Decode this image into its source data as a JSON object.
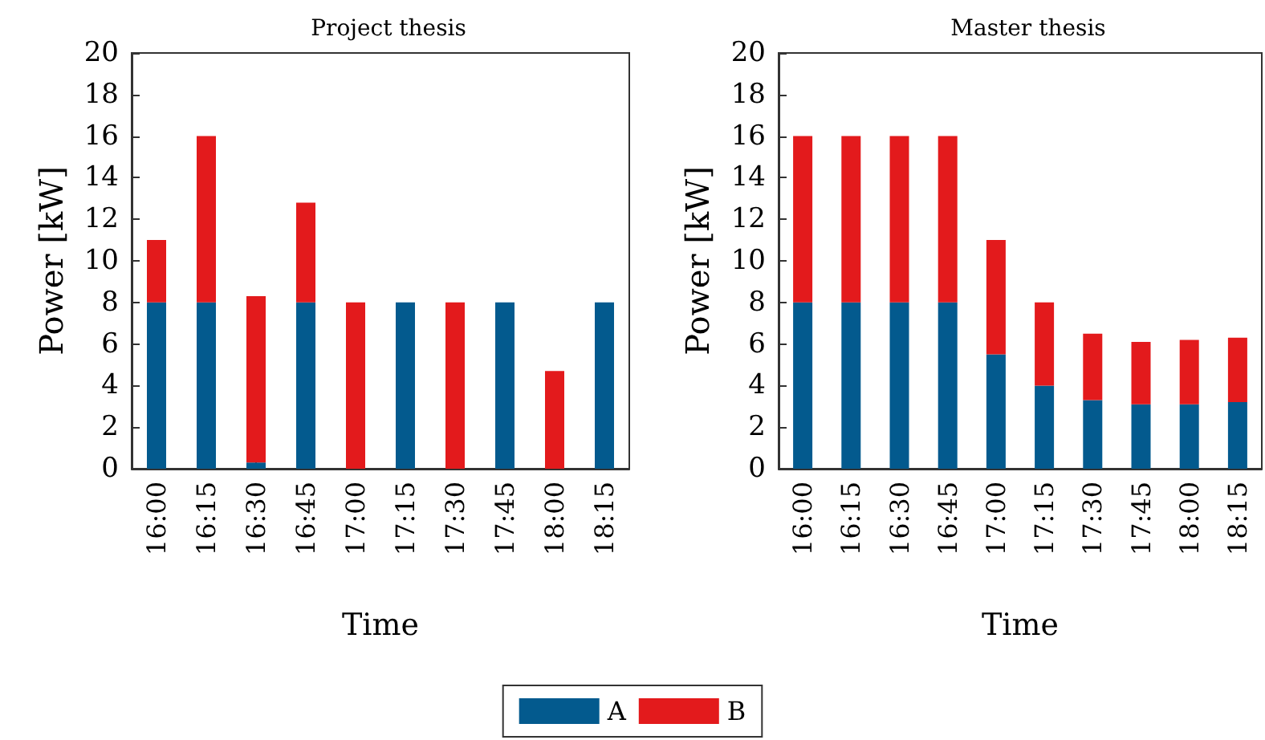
{
  "chart_data": [
    {
      "type": "bar",
      "title": "Project thesis",
      "xlabel": "Time",
      "ylabel": "Power [kW]",
      "stacked": true,
      "legend": "bottom",
      "grid": false,
      "categories": [
        "16:00",
        "16:15",
        "16:30",
        "16:45",
        "17:00",
        "17:15",
        "17:30",
        "17:45",
        "18:00",
        "18:15"
      ],
      "ylim": [
        0,
        20
      ],
      "yticks": [
        0,
        2,
        4,
        6,
        8,
        10,
        12,
        14,
        16,
        18,
        20
      ],
      "series": [
        {
          "name": "A",
          "color": "#035a8e",
          "values": [
            8,
            8,
            0.3,
            8,
            0,
            8,
            0,
            8,
            0,
            8
          ]
        },
        {
          "name": "B",
          "color": "#e31a1c",
          "values": [
            3,
            8,
            8,
            4.8,
            8,
            0,
            8,
            0,
            4.7,
            0
          ]
        }
      ]
    },
    {
      "type": "bar",
      "title": "Master thesis",
      "xlabel": "Time",
      "ylabel": "Power [kW]",
      "stacked": true,
      "grid": false,
      "categories": [
        "16:00",
        "16:15",
        "16:30",
        "16:45",
        "17:00",
        "17:15",
        "17:30",
        "17:45",
        "18:00",
        "18:15"
      ],
      "ylim": [
        0,
        20
      ],
      "yticks": [
        0,
        2,
        4,
        6,
        8,
        10,
        12,
        14,
        16,
        18,
        20
      ],
      "series": [
        {
          "color": "#035a8e",
          "values": [
            8,
            8,
            8,
            8,
            5.5,
            4,
            3.3,
            3.1,
            3.1,
            3.2
          ]
        },
        {
          "color": "#e31a1c",
          "values": [
            8,
            8,
            8,
            8,
            5.5,
            4,
            3.2,
            3,
            3.1,
            3.1
          ]
        }
      ]
    }
  ]
}
